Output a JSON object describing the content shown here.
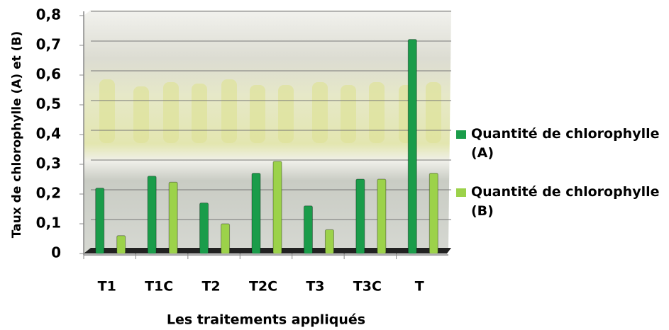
{
  "chart_data": {
    "type": "bar",
    "x_label": "Les traitements appliqués",
    "y_label": "Taux de chlorophylle (A) et (B)",
    "categories": [
      "T1",
      "T1C",
      "T2",
      "T2C",
      "T3",
      "T3C",
      "T"
    ],
    "series": [
      {
        "name": "Quantité de chlorophylle (A)",
        "color": "#1a9c4a",
        "values": [
          0.22,
          0.26,
          0.17,
          0.27,
          0.16,
          0.25,
          0.72
        ]
      },
      {
        "name": "Quantité de chlorophylle (B)",
        "color": "#9cd24a",
        "values": [
          0.06,
          0.24,
          0.1,
          0.31,
          0.08,
          0.25,
          0.27
        ]
      }
    ],
    "ylim": [
      0,
      0.8
    ],
    "yticks": [
      0,
      {
        "value": 0.1,
        "label": "0,1"
      },
      {
        "value": 0.2,
        "label": "0,2"
      },
      {
        "value": 0.3,
        "label": "0,3"
      },
      {
        "value": 0.4,
        "label": "0,4"
      },
      {
        "value": 0.5,
        "label": "0,5"
      },
      {
        "value": 0.6,
        "label": "0,6"
      },
      {
        "value": 0.7,
        "label": "0,7"
      },
      {
        "value": 0.8,
        "label": "0,8"
      }
    ],
    "grid": true
  }
}
